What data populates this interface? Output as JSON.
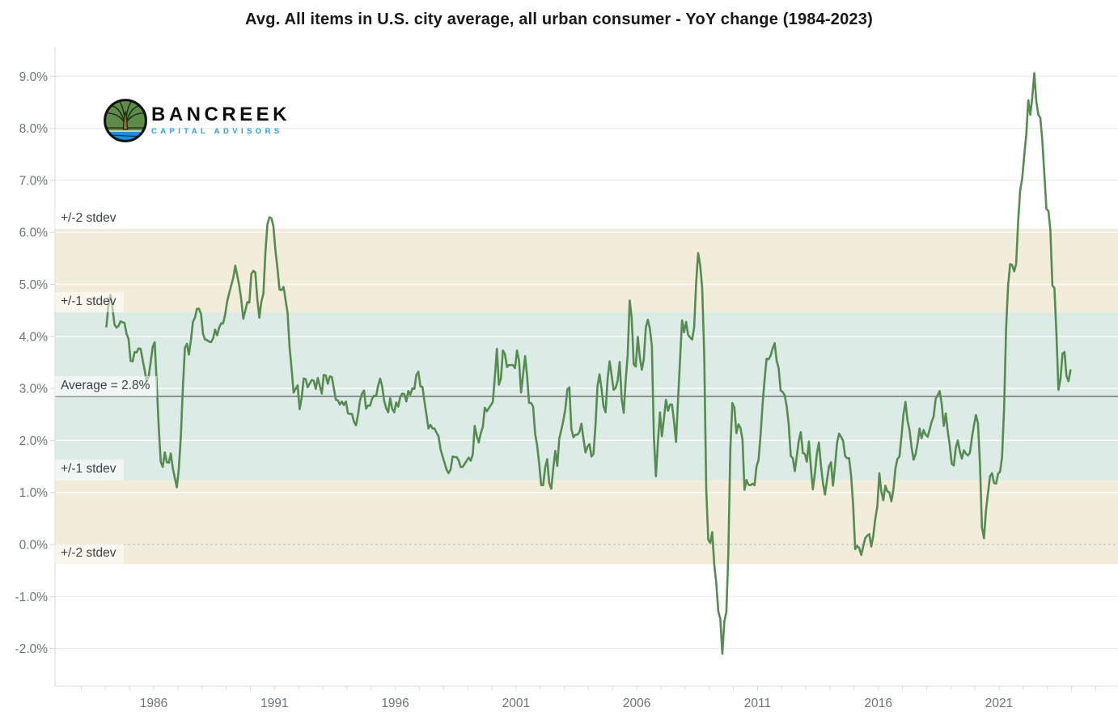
{
  "title": "Avg. All items in U.S. city average, all urban consumer - YoY change (1984-2023)",
  "logo": {
    "name": "BANCREEK",
    "subtitle": "CAPITAL ADVISORS"
  },
  "colors": {
    "line": "#568b52",
    "band_1sd": "#dcebe6",
    "band_2sd": "#f2ecda",
    "average_line": "#7a7d7a",
    "zero_dash": "#b6b6b6",
    "grid_white": "rgba(255,255,255,0.9)",
    "grid_gray": "#ececec",
    "axis": "#d9d9d9",
    "axis_label": "#6c757c",
    "annotation_text": "#3e4245",
    "title_text": "#181818",
    "logo_subtitle": "#2b9df0"
  },
  "chart_data": {
    "type": "line",
    "title": "Avg. All items in U.S. city average, all urban consumer - YoY change (1984-2023)",
    "xlabel": "",
    "ylabel": "",
    "grid": true,
    "legend": "none",
    "ylim": [
      -2.7,
      9.6
    ],
    "x_start_year": 1984,
    "frequency": "monthly",
    "average": 2.8,
    "average_label": "Average = 2.8%",
    "stdev1_label": "+/-1 stdev",
    "stdev2_label": "+/-2 stdev",
    "annotations": [
      {
        "label": "+/-2 stdev",
        "sigma": 2
      },
      {
        "label": "+/-1 stdev",
        "sigma": 1
      },
      {
        "label": "Average = 2.8%",
        "sigma": 0
      },
      {
        "label": "+/-1 stdev",
        "sigma": -1
      },
      {
        "label": "+/-2 stdev",
        "sigma": -2
      }
    ],
    "x_tick_years": [
      1986,
      1991,
      1996,
      2001,
      2006,
      2011,
      2016,
      2021
    ],
    "y_ticks": [
      {
        "value": 9,
        "label": "9.0%"
      },
      {
        "value": 8,
        "label": "8.0%"
      },
      {
        "value": 7,
        "label": "7.0%"
      },
      {
        "value": 6,
        "label": "6.0%"
      },
      {
        "value": 5,
        "label": "5.0%"
      },
      {
        "value": 4,
        "label": "4.0%"
      },
      {
        "value": 3,
        "label": "3.0%"
      },
      {
        "value": 2,
        "label": "2.0%"
      },
      {
        "value": 1,
        "label": "1.0%"
      },
      {
        "value": 0,
        "label": "0.0%"
      },
      {
        "value": -1,
        "label": "-1.0%"
      },
      {
        "value": -2,
        "label": "-2.0%"
      }
    ],
    "series": [
      {
        "name": "YoY change",
        "values": [
          4.19,
          4.6,
          4.8,
          4.56,
          4.23,
          4.17,
          4.2,
          4.29,
          4.27,
          4.26,
          4.05,
          3.95,
          3.53,
          3.52,
          3.7,
          3.69,
          3.77,
          3.76,
          3.55,
          3.35,
          3.14,
          3.23,
          3.51,
          3.8,
          3.89,
          3.11,
          2.26,
          1.59,
          1.49,
          1.77,
          1.58,
          1.57,
          1.75,
          1.47,
          1.28,
          1.1,
          1.46,
          2.1,
          3.03,
          3.78,
          3.86,
          3.65,
          3.93,
          4.28,
          4.36,
          4.53,
          4.53,
          4.43,
          4.05,
          3.94,
          3.93,
          3.9,
          3.89,
          3.96,
          4.13,
          4.02,
          4.17,
          4.25,
          4.25,
          4.42,
          4.67,
          4.83,
          4.98,
          5.12,
          5.36,
          5.17,
          4.98,
          4.71,
          4.34,
          4.49,
          4.66,
          4.65,
          5.2,
          5.26,
          5.23,
          4.71,
          4.36,
          4.67,
          4.82,
          5.62,
          6.16,
          6.29,
          6.27,
          6.11,
          5.65,
          5.31,
          4.9,
          4.89,
          4.95,
          4.7,
          4.45,
          3.8,
          3.39,
          2.92,
          2.99,
          3.06,
          2.6,
          2.82,
          3.19,
          3.18,
          3.02,
          3.09,
          3.16,
          3.15,
          2.99,
          3.2,
          3.05,
          2.9,
          3.26,
          3.25,
          3.09,
          3.23,
          3.22,
          3.0,
          2.78,
          2.77,
          2.69,
          2.75,
          2.68,
          2.75,
          2.52,
          2.51,
          2.51,
          2.36,
          2.29,
          2.49,
          2.77,
          2.9,
          2.96,
          2.61,
          2.67,
          2.67,
          2.8,
          2.86,
          2.85,
          3.05,
          3.19,
          3.04,
          2.76,
          2.62,
          2.54,
          2.81,
          2.61,
          2.54,
          2.73,
          2.65,
          2.84,
          2.9,
          2.89,
          2.75,
          2.95,
          2.88,
          3.0,
          2.99,
          3.26,
          3.32,
          3.04,
          3.03,
          2.76,
          2.5,
          2.23,
          2.3,
          2.23,
          2.23,
          2.15,
          2.08,
          1.83,
          1.7,
          1.57,
          1.44,
          1.37,
          1.44,
          1.69,
          1.68,
          1.68,
          1.62,
          1.49,
          1.49,
          1.55,
          1.61,
          1.67,
          1.61,
          1.73,
          2.28,
          2.09,
          1.96,
          2.14,
          2.26,
          2.63,
          2.56,
          2.62,
          2.68,
          2.74,
          3.22,
          3.76,
          3.07,
          3.19,
          3.73,
          3.66,
          3.41,
          3.45,
          3.45,
          3.45,
          3.39,
          3.73,
          3.53,
          2.92,
          3.27,
          3.62,
          3.25,
          2.72,
          2.72,
          2.65,
          2.13,
          1.9,
          1.55,
          1.14,
          1.14,
          1.48,
          1.64,
          1.18,
          1.07,
          1.46,
          1.8,
          1.51,
          2.03,
          2.2,
          2.38,
          2.6,
          2.98,
          3.02,
          2.22,
          2.06,
          2.11,
          2.11,
          2.16,
          2.32,
          2.04,
          1.77,
          1.88,
          1.93,
          1.69,
          1.74,
          2.29,
          3.05,
          3.27,
          2.99,
          2.65,
          2.54,
          3.19,
          3.52,
          3.26,
          2.97,
          3.01,
          3.15,
          3.51,
          2.8,
          2.53,
          3.17,
          3.64,
          4.69,
          4.35,
          3.46,
          3.42,
          3.99,
          3.6,
          3.36,
          3.55,
          4.17,
          4.32,
          4.15,
          3.82,
          2.06,
          1.31,
          1.97,
          2.54,
          2.08,
          2.42,
          2.78,
          2.57,
          2.69,
          2.69,
          2.36,
          1.97,
          2.76,
          3.54,
          4.31,
          4.08,
          4.28,
          4.03,
          3.98,
          3.94,
          4.18,
          5.02,
          5.6,
          5.37,
          4.94,
          3.66,
          1.07,
          0.09,
          0.03,
          0.24,
          -0.38,
          -0.74,
          -1.28,
          -1.43,
          -2.1,
          -1.48,
          -1.29,
          -0.18,
          1.84,
          2.72,
          2.63,
          2.14,
          2.31,
          2.24,
          2.02,
          1.05,
          1.24,
          1.15,
          1.14,
          1.17,
          1.14,
          1.5,
          1.63,
          2.11,
          2.68,
          3.16,
          3.57,
          3.56,
          3.63,
          3.77,
          3.87,
          3.53,
          3.39,
          2.96,
          2.93,
          2.87,
          2.65,
          2.3,
          1.7,
          1.66,
          1.41,
          1.69,
          1.99,
          2.16,
          1.76,
          1.74,
          1.59,
          1.98,
          1.47,
          1.06,
          1.36,
          1.75,
          1.96,
          1.52,
          1.18,
          0.96,
          1.24,
          1.5,
          1.58,
          1.13,
          1.51,
          1.95,
          2.13,
          2.07,
          1.99,
          1.7,
          1.66,
          1.66,
          1.32,
          0.76,
          -0.09,
          -0.03,
          -0.07,
          -0.2,
          -0.04,
          0.12,
          0.17,
          0.2,
          -0.04,
          0.17,
          0.5,
          0.73,
          1.37,
          1.02,
          0.85,
          1.13,
          1.02,
          1.0,
          0.83,
          1.06,
          1.46,
          1.64,
          1.69,
          2.07,
          2.5,
          2.74,
          2.38,
          2.2,
          1.87,
          1.63,
          1.73,
          1.94,
          2.23,
          2.04,
          2.2,
          2.11,
          2.07,
          2.21,
          2.36,
          2.46,
          2.8,
          2.87,
          2.95,
          2.7,
          2.28,
          2.52,
          2.18,
          1.91,
          1.55,
          1.52,
          1.86,
          2.0,
          1.79,
          1.65,
          1.81,
          1.75,
          1.71,
          1.76,
          2.05,
          2.29,
          2.49,
          2.33,
          1.54,
          0.33,
          0.12,
          0.65,
          0.99,
          1.31,
          1.37,
          1.18,
          1.17,
          1.36,
          1.4,
          1.68,
          2.62,
          4.16,
          4.99,
          5.39,
          5.37,
          5.25,
          5.39,
          6.22,
          6.81,
          7.04,
          7.48,
          7.87,
          8.54,
          8.26,
          8.58,
          9.06,
          8.52,
          8.26,
          8.2,
          7.75,
          7.11,
          6.45,
          6.41,
          6.04,
          4.98,
          4.93,
          4.05,
          2.97,
          3.18,
          3.67,
          3.7,
          3.24,
          3.14,
          3.35
        ]
      }
    ]
  }
}
